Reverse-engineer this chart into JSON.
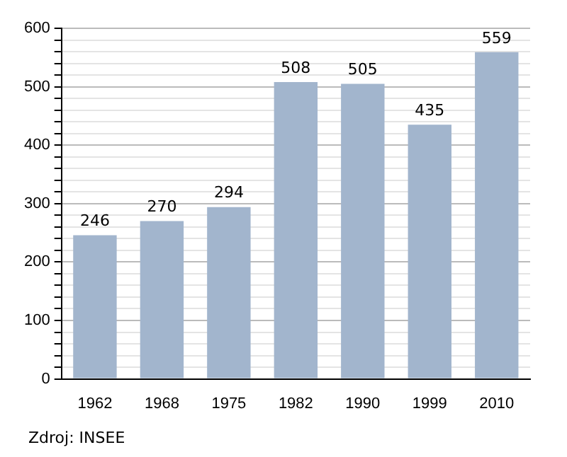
{
  "chart_data": {
    "type": "bar",
    "categories": [
      "1962",
      "1968",
      "1975",
      "1982",
      "1990",
      "1999",
      "2010"
    ],
    "values": [
      246,
      270,
      294,
      508,
      505,
      435,
      559
    ],
    "color": "#a2b5cd",
    "ylim": [
      0,
      600
    ],
    "yticks": [
      0,
      {
        "value": 20,
        "label": null
      },
      {
        "value": 40,
        "label": null
      },
      {
        "value": 60,
        "label": null
      },
      {
        "value": 80,
        "label": null
      },
      100,
      {
        "value": 120,
        "label": null
      },
      {
        "value": 140,
        "label": null
      },
      {
        "value": 160,
        "label": null
      },
      {
        "value": 180,
        "label": null
      },
      200,
      {
        "value": 220,
        "label": null
      },
      {
        "value": 240,
        "label": null
      },
      {
        "value": 260,
        "label": null
      },
      {
        "value": 280,
        "label": null
      },
      300,
      {
        "value": 320,
        "label": null
      },
      {
        "value": 340,
        "label": null
      },
      {
        "value": 360,
        "label": null
      },
      {
        "value": 380,
        "label": null
      },
      400,
      {
        "value": 420,
        "label": null
      },
      {
        "value": 440,
        "label": null
      },
      {
        "value": 460,
        "label": null
      },
      {
        "value": 480,
        "label": null
      },
      500,
      {
        "value": 520,
        "label": null
      },
      {
        "value": 540,
        "label": null
      },
      {
        "value": 560,
        "label": null
      },
      {
        "value": 580,
        "label": null
      },
      600
    ],
    "grid": "y",
    "data_labels": true,
    "legend": false,
    "annotations": [
      "Zdroj: INSEE"
    ]
  }
}
